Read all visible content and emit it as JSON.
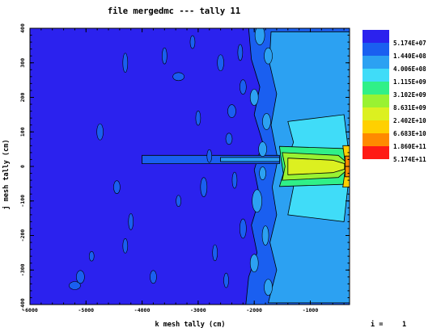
{
  "chart_data": {
    "type": "heatmap",
    "title": "file mergedmc --- tally   11",
    "xlabel": "k mesh tally (cm)",
    "ylabel": "j mesh tally (cm)",
    "xlim": [
      -6000,
      -300
    ],
    "ylim": [
      -400,
      400
    ],
    "x_ticks": [
      -6000,
      -5000,
      -4000,
      -3000,
      -2000,
      -1000
    ],
    "y_ticks": [
      -400,
      -300,
      -200,
      -100,
      0,
      100,
      200,
      300,
      400
    ],
    "legend_placement": "right",
    "legend": [
      {
        "label": "5.174E+07",
        "color": "#2b22ee"
      },
      {
        "label": "1.440E+08",
        "color": "#1a5ff0"
      },
      {
        "label": "4.006E+08",
        "color": "#2ca1f2"
      },
      {
        "label": "1.115E+09",
        "color": "#40dcf8"
      },
      {
        "label": "3.102E+09",
        "color": "#30f088"
      },
      {
        "label": "8.631E+09",
        "color": "#99f232"
      },
      {
        "label": "2.402E+10",
        "color": "#dcf020"
      },
      {
        "label": "6.683E+10",
        "color": "#ffd000"
      },
      {
        "label": "1.860E+11",
        "color": "#ff8a00"
      },
      {
        "label": "5.174E+11",
        "color": "#ff1a14"
      }
    ],
    "footer": {
      "label": "i =",
      "value": "1"
    }
  }
}
